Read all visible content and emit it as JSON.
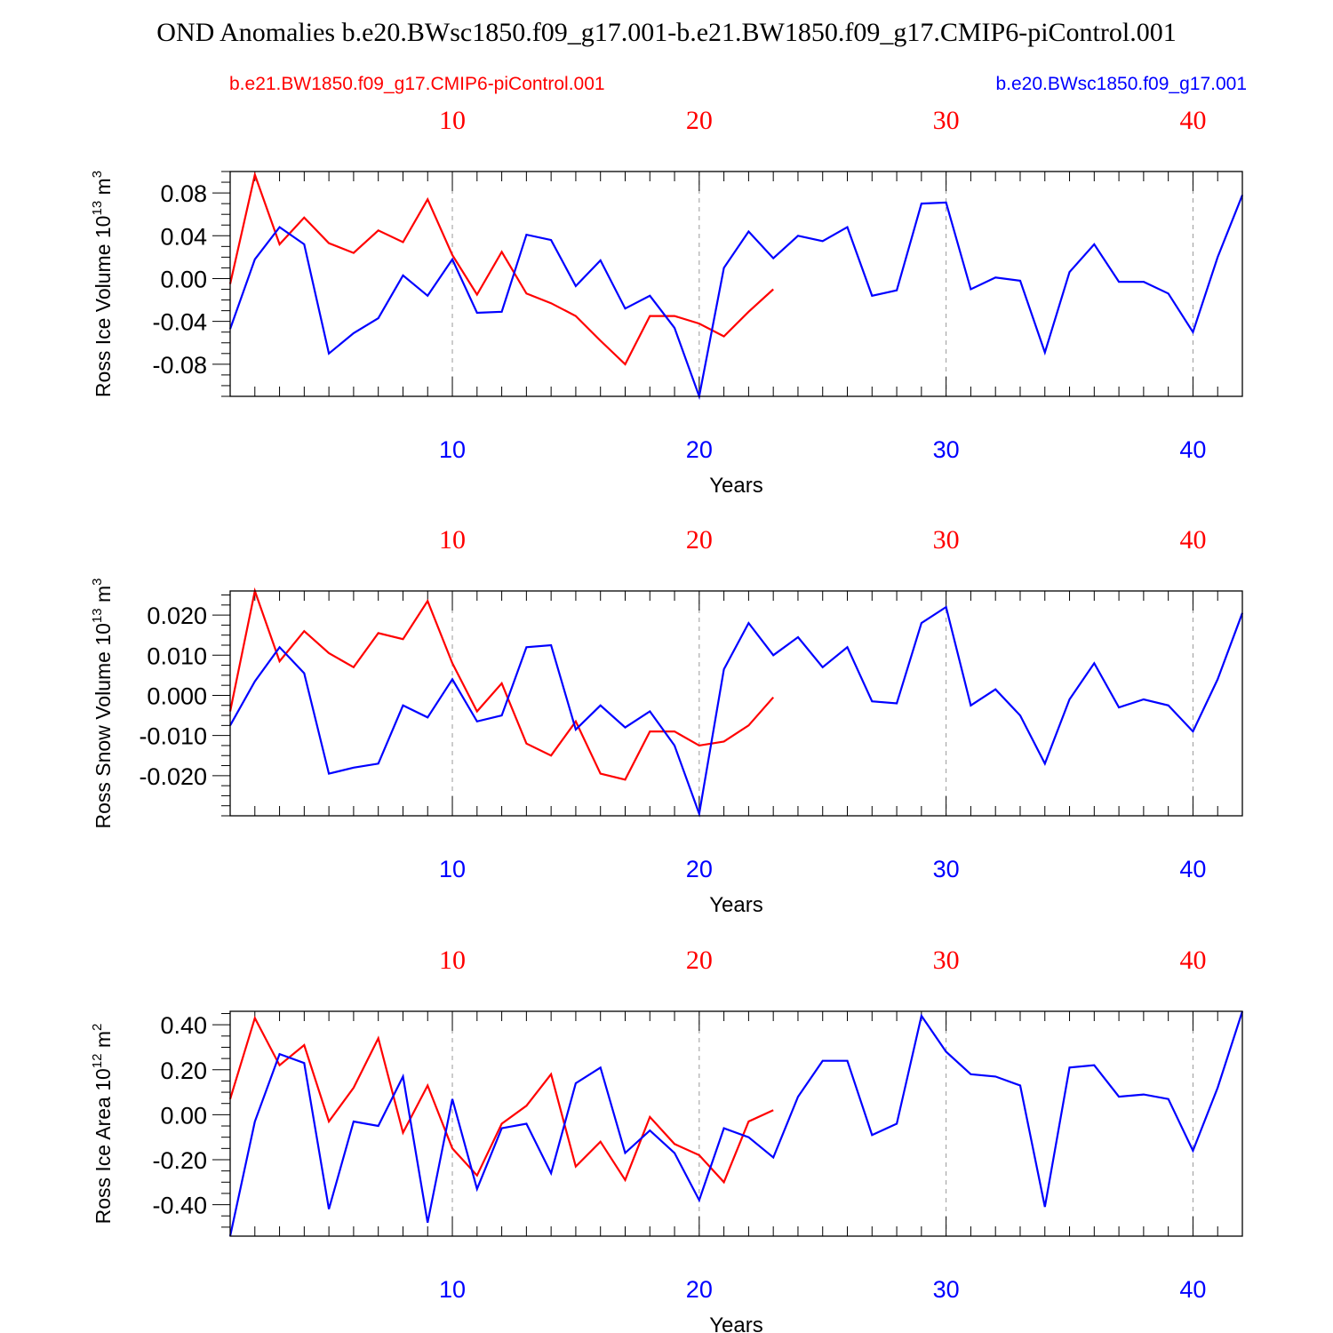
{
  "title": "OND Anomalies b.e20.BWsc1850.f09_g17.001-b.e21.BW1850.f09_g17.CMIP6-piControl.001",
  "legend": {
    "red_label": "b.e21.BW1850.f09_g17.CMIP6-piControl.001",
    "blue_label": "b.e20.BWsc1850.f09_g17.001"
  },
  "colors": {
    "red": "#ff0000",
    "blue": "#0000ff"
  },
  "chart_data": [
    {
      "type": "line",
      "ylabel": "Ross Ice Volume 10",
      "ylabel_exp": "13",
      "ylabel_unit": " m",
      "ylabel_unit_exp": "3",
      "xlabel": "Years",
      "xlim": [
        1,
        42
      ],
      "ylim": [
        -0.11,
        0.1
      ],
      "yticks": [
        0.08,
        0.04,
        0.0,
        -0.04,
        -0.08
      ],
      "ytick_labels": [
        "0.08",
        "0.04",
        "0.00",
        "-0.04",
        "-0.08"
      ],
      "xticks_top": [
        10,
        20,
        30,
        40
      ],
      "xtick_labels_top": [
        "10",
        "20",
        "30",
        "40"
      ],
      "xticks_bottom": [
        10,
        20,
        30,
        40
      ],
      "xtick_labels_bottom": [
        "10",
        "20",
        "30",
        "40"
      ],
      "series": [
        {
          "color": "red",
          "x": [
            1,
            2,
            3,
            4,
            5,
            6,
            7,
            8,
            9,
            10,
            11,
            12,
            13,
            14,
            15,
            16,
            17,
            18,
            19,
            20,
            21,
            22,
            23
          ],
          "values": [
            -0.005,
            0.097,
            0.032,
            0.057,
            0.033,
            0.024,
            0.045,
            0.034,
            0.074,
            0.022,
            -0.015,
            0.025,
            -0.014,
            -0.023,
            -0.035,
            -0.058,
            -0.08,
            -0.035,
            -0.035,
            -0.042,
            -0.054,
            -0.031,
            -0.01
          ]
        },
        {
          "color": "blue",
          "x": [
            1,
            2,
            3,
            4,
            5,
            6,
            7,
            8,
            9,
            10,
            11,
            12,
            13,
            14,
            15,
            16,
            17,
            18,
            19,
            20,
            21,
            22,
            23,
            24,
            25,
            26,
            27,
            28,
            29,
            30,
            31,
            32,
            33,
            34,
            35,
            36,
            37,
            38,
            39,
            40,
            41,
            42
          ],
          "values": [
            -0.047,
            0.018,
            0.048,
            0.032,
            -0.07,
            -0.051,
            -0.037,
            0.003,
            -0.016,
            0.018,
            -0.032,
            -0.031,
            0.041,
            0.036,
            -0.007,
            0.017,
            -0.028,
            -0.016,
            -0.046,
            -0.11,
            0.01,
            0.044,
            0.019,
            0.04,
            0.035,
            0.048,
            -0.016,
            -0.011,
            0.07,
            0.071,
            -0.01,
            0.001,
            -0.002,
            -0.069,
            0.006,
            0.032,
            -0.003,
            -0.003,
            -0.014,
            -0.05,
            0.02,
            0.078
          ]
        }
      ]
    },
    {
      "type": "line",
      "ylabel": "Ross Snow Volume 10",
      "ylabel_exp": "13",
      "ylabel_unit": " m",
      "ylabel_unit_exp": "3",
      "xlabel": "Years",
      "xlim": [
        1,
        42
      ],
      "ylim": [
        -0.03,
        0.026
      ],
      "yticks": [
        0.02,
        0.01,
        0.0,
        -0.01,
        -0.02
      ],
      "ytick_labels": [
        "0.020",
        "0.010",
        "0.000",
        "-0.010",
        "-0.020"
      ],
      "xticks_top": [
        10,
        20,
        30,
        40
      ],
      "xtick_labels_top": [
        "10",
        "20",
        "30",
        "40"
      ],
      "xticks_bottom": [
        10,
        20,
        30,
        40
      ],
      "xtick_labels_bottom": [
        "10",
        "20",
        "30",
        "40"
      ],
      "series": [
        {
          "color": "red",
          "x": [
            1,
            2,
            3,
            4,
            5,
            6,
            7,
            8,
            9,
            10,
            11,
            12,
            13,
            14,
            15,
            16,
            17,
            18,
            19,
            20,
            21,
            22,
            23
          ],
          "values": [
            -0.004,
            0.026,
            0.0085,
            0.016,
            0.0105,
            0.007,
            0.0155,
            0.014,
            0.0235,
            0.008,
            -0.004,
            0.003,
            -0.012,
            -0.015,
            -0.0065,
            -0.0195,
            -0.021,
            -0.009,
            -0.009,
            -0.0125,
            -0.0115,
            -0.0075,
            -0.0005
          ]
        },
        {
          "color": "blue",
          "x": [
            1,
            2,
            3,
            4,
            5,
            6,
            7,
            8,
            9,
            10,
            11,
            12,
            13,
            14,
            15,
            16,
            17,
            18,
            19,
            20,
            21,
            22,
            23,
            24,
            25,
            26,
            27,
            28,
            29,
            30,
            31,
            32,
            33,
            34,
            35,
            36,
            37,
            38,
            39,
            40,
            41,
            42
          ],
          "values": [
            -0.0075,
            0.0035,
            0.012,
            0.0055,
            -0.0195,
            -0.018,
            -0.017,
            -0.0025,
            -0.0055,
            0.004,
            -0.0065,
            -0.005,
            0.012,
            0.0125,
            -0.0085,
            -0.0025,
            -0.008,
            -0.004,
            -0.0125,
            -0.0295,
            0.0065,
            0.018,
            0.01,
            0.0145,
            0.007,
            0.012,
            -0.0015,
            -0.002,
            0.018,
            0.022,
            -0.0025,
            0.0015,
            -0.005,
            -0.017,
            -0.001,
            0.008,
            -0.003,
            -0.001,
            -0.0025,
            -0.009,
            0.004,
            0.0205
          ]
        }
      ]
    },
    {
      "type": "line",
      "ylabel": "Ross Ice Area 10",
      "ylabel_exp": "12",
      "ylabel_unit": " m",
      "ylabel_unit_exp": "2",
      "xlabel": "Years",
      "xlim": [
        1,
        42
      ],
      "ylim": [
        -0.54,
        0.46
      ],
      "yticks": [
        0.4,
        0.2,
        0.0,
        -0.2,
        -0.4
      ],
      "ytick_labels": [
        "0.40",
        "0.20",
        "0.00",
        "-0.20",
        "-0.40"
      ],
      "xticks_top": [
        10,
        20,
        30,
        40
      ],
      "xtick_labels_top": [
        "10",
        "20",
        "30",
        "40"
      ],
      "xticks_bottom": [
        10,
        20,
        30,
        40
      ],
      "xtick_labels_bottom": [
        "10",
        "20",
        "30",
        "40"
      ],
      "series": [
        {
          "color": "red",
          "x": [
            1,
            2,
            3,
            4,
            5,
            6,
            7,
            8,
            9,
            10,
            11,
            12,
            13,
            14,
            15,
            16,
            17,
            18,
            19,
            20,
            21,
            22,
            23
          ],
          "values": [
            0.07,
            0.43,
            0.22,
            0.31,
            -0.03,
            0.12,
            0.34,
            -0.08,
            0.13,
            -0.15,
            -0.27,
            -0.04,
            0.04,
            0.18,
            -0.23,
            -0.12,
            -0.29,
            -0.01,
            -0.13,
            -0.18,
            -0.3,
            -0.03,
            0.02
          ]
        },
        {
          "color": "blue",
          "x": [
            1,
            2,
            3,
            4,
            5,
            6,
            7,
            8,
            9,
            10,
            11,
            12,
            13,
            14,
            15,
            16,
            17,
            18,
            19,
            20,
            21,
            22,
            23,
            24,
            25,
            26,
            27,
            28,
            29,
            30,
            31,
            32,
            33,
            34,
            35,
            36,
            37,
            38,
            39,
            40,
            41,
            42
          ],
          "values": [
            -0.54,
            -0.03,
            0.27,
            0.23,
            -0.42,
            -0.03,
            -0.05,
            0.17,
            -0.48,
            0.07,
            -0.33,
            -0.06,
            -0.04,
            -0.26,
            0.14,
            0.21,
            -0.17,
            -0.07,
            -0.17,
            -0.38,
            -0.06,
            -0.1,
            -0.19,
            0.08,
            0.24,
            0.24,
            -0.09,
            -0.04,
            0.44,
            0.28,
            0.18,
            0.17,
            0.13,
            -0.41,
            0.21,
            0.22,
            0.08,
            0.09,
            0.07,
            -0.16,
            0.12,
            0.46
          ]
        }
      ]
    }
  ]
}
